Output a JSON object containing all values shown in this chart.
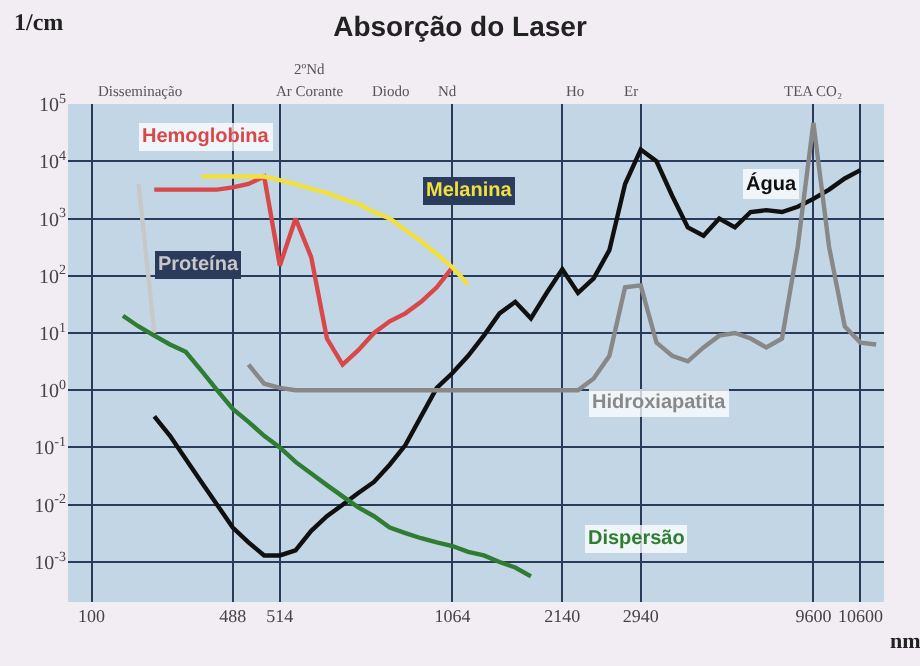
{
  "chart_data": {
    "type": "line",
    "title": "Absorção do Laser",
    "ylabel": "1/cm",
    "xlabel": "nm",
    "log": "y",
    "grid": true,
    "legend": false,
    "marker": "none",
    "line_style": "solid",
    "categories": [
      null,
      "100",
      null,
      null,
      null,
      null,
      null,
      null,
      null,
      null,
      "488",
      null,
      null,
      "514",
      null,
      null,
      null,
      null,
      null,
      null,
      null,
      null,
      null,
      null,
      "1064",
      null,
      null,
      null,
      null,
      null,
      null,
      "2140",
      null,
      null,
      null,
      null,
      "2940",
      null,
      null,
      null,
      null,
      null,
      null,
      null,
      null,
      null,
      null,
      "9600",
      null,
      null,
      "10600",
      null
    ],
    "annotations": [
      "Disseminação",
      "2ºNd",
      "Ar Corante",
      "Diodo",
      "Nd",
      "Ho",
      "Er",
      "TEA CO₂"
    ],
    "ylim": [
      0.0002,
      100000
    ],
    "yticks": [
      {
        "value": 0.001,
        "label": "10$^{-3}$"
      },
      {
        "value": 0.01,
        "label": "10$^{-2}$"
      },
      {
        "value": 0.1,
        "label": "10$^{-1}$"
      },
      {
        "value": 1,
        "label": "10$^{0}$"
      },
      {
        "value": 10,
        "label": "10$^{1}$"
      },
      {
        "value": 100,
        "label": "10$^{2}$"
      },
      {
        "value": 1000,
        "label": "10$^{3}$"
      },
      {
        "value": 10000,
        "label": "10$^{4}$"
      },
      {
        "value": 100000,
        "label": "10$^{5}$"
      }
    ],
    "series": [
      {
        "name": "Proteína",
        "color": "#c8c8c8",
        "values": [
          null,
          null,
          null,
          null,
          4000,
          10,
          null,
          null,
          null,
          null,
          null,
          null,
          null,
          null,
          null,
          null,
          null,
          null,
          null,
          null,
          null,
          null,
          null,
          null,
          null,
          null,
          null,
          null,
          null,
          null,
          null,
          null,
          null,
          null,
          null,
          null,
          null,
          null,
          null,
          null,
          null,
          null,
          null,
          null,
          null,
          null,
          null,
          null,
          null,
          null,
          null,
          null
        ]
      },
      {
        "name": "Hemoglobina",
        "color": "#d84848",
        "values": [
          null,
          null,
          null,
          null,
          null,
          3200,
          3200,
          3200,
          3200,
          3200,
          3500,
          4000,
          5400,
          150,
          1000,
          210,
          8,
          2.8,
          5,
          10,
          16,
          22,
          35,
          63,
          140,
          null,
          null,
          null,
          null,
          null,
          null,
          null,
          null,
          null,
          null,
          null,
          null,
          null,
          null,
          null,
          null,
          null,
          null,
          null,
          null,
          null,
          null,
          null,
          null,
          null,
          null,
          null
        ]
      },
      {
        "name": "Melanina",
        "color": "#f0e040",
        "values": [
          null,
          null,
          null,
          null,
          null,
          null,
          null,
          null,
          5400,
          5400,
          5400,
          5400,
          5400,
          4700,
          4000,
          3300,
          2800,
          2200,
          1800,
          1300,
          1000,
          630,
          400,
          240,
          140,
          70,
          null,
          null,
          null,
          null,
          null,
          null,
          null,
          null,
          null,
          null,
          null,
          null,
          null,
          null,
          null,
          null,
          null,
          null,
          null,
          null,
          null,
          null,
          null,
          null,
          null,
          null
        ]
      },
      {
        "name": "Água",
        "color": "#101010",
        "values": [
          null,
          null,
          null,
          null,
          null,
          0.35,
          0.16,
          0.063,
          0.025,
          0.01,
          0.004,
          0.0022,
          0.0013,
          0.0013,
          0.0016,
          0.0035,
          0.0063,
          0.01,
          0.016,
          0.025,
          0.05,
          0.11,
          0.35,
          1.1,
          2,
          4,
          9,
          22,
          35,
          18,
          50,
          130,
          50,
          90,
          280,
          4000,
          16000,
          10000,
          2500,
          700,
          500,
          1000,
          700,
          1300,
          1400,
          1300,
          1600,
          2200,
          3200,
          5000,
          7000,
          null
        ]
      },
      {
        "name": "Hidroxiapatita",
        "color": "#888888",
        "values": [
          null,
          null,
          null,
          null,
          null,
          null,
          null,
          null,
          null,
          null,
          null,
          2.8,
          1.3,
          1.1,
          1,
          1,
          1,
          1,
          1,
          1,
          1,
          1,
          1,
          1,
          1,
          1,
          1,
          1,
          1,
          1,
          1,
          1,
          1,
          1.6,
          4,
          63,
          68,
          6.8,
          4,
          3.2,
          5.6,
          9,
          10,
          8,
          5.6,
          8,
          320,
          47000,
          320,
          13,
          6.8,
          6.3
        ]
      },
      {
        "name": "Dispersão",
        "color": "#2e7d32",
        "values": [
          null,
          null,
          null,
          20,
          13,
          9,
          6.3,
          4.7,
          2.2,
          1,
          0.47,
          0.28,
          0.16,
          0.1,
          0.056,
          0.035,
          0.022,
          0.014,
          0.009,
          0.0063,
          0.004,
          0.0032,
          0.0026,
          0.0022,
          0.0019,
          0.0015,
          0.0013,
          0.001,
          0.0008,
          0.00056,
          null,
          null,
          null,
          null,
          null,
          null,
          null,
          null,
          null,
          null,
          null,
          null,
          null,
          null,
          null,
          null,
          null,
          null,
          null,
          null,
          null,
          null
        ]
      }
    ]
  }
}
